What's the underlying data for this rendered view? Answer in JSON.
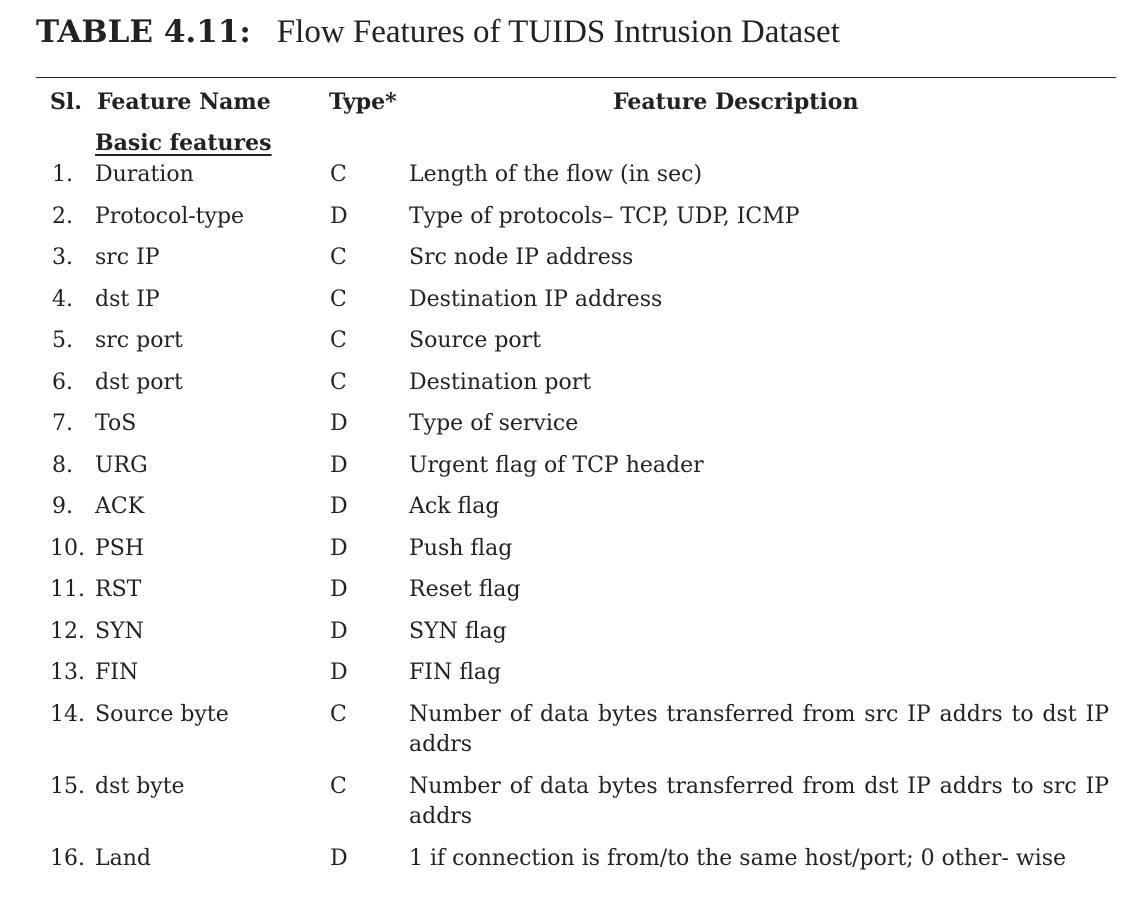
{
  "caption": {
    "label": "TABLE 4.11:",
    "title": "Flow Features of TUIDS Intrusion Dataset"
  },
  "headers": {
    "sl": "Sl.",
    "feature_name": "Feature Name",
    "type": "Type*",
    "description": "Feature Description"
  },
  "section": "Basic features",
  "rows": [
    {
      "no": "1.",
      "name": "Duration",
      "type": "C",
      "desc": "Length of the flow (in sec)"
    },
    {
      "no": "2.",
      "name": "Protocol-type",
      "type": "D",
      "desc": "Type of protocols– TCP, UDP, ICMP"
    },
    {
      "no": "3.",
      "name": "src IP",
      "type": "C",
      "desc": "Src node IP address"
    },
    {
      "no": "4.",
      "name": "dst IP",
      "type": "C",
      "desc": "Destination IP address"
    },
    {
      "no": "5.",
      "name": "src port",
      "type": "C",
      "desc": "Source port"
    },
    {
      "no": "6.",
      "name": "dst port",
      "type": "C",
      "desc": "Destination port"
    },
    {
      "no": "7.",
      "name": "ToS",
      "type": "D",
      "desc": "Type of service"
    },
    {
      "no": "8.",
      "name": "URG",
      "type": "D",
      "desc": "Urgent flag of TCP header"
    },
    {
      "no": "9.",
      "name": "ACK",
      "type": "D",
      "desc": "Ack flag"
    },
    {
      "no": "10.",
      "name": "PSH",
      "type": "D",
      "desc": "Push flag"
    },
    {
      "no": "11.",
      "name": "RST",
      "type": "D",
      "desc": "Reset flag"
    },
    {
      "no": "12.",
      "name": "SYN",
      "type": "D",
      "desc": "SYN flag"
    },
    {
      "no": "13.",
      "name": "FIN",
      "type": "D",
      "desc": "FIN flag"
    },
    {
      "no": "14.",
      "name": "Source byte",
      "type": "C",
      "desc": "Number of data bytes transferred from src IP addrs to dst IP addrs"
    },
    {
      "no": "15.",
      "name": "dst byte",
      "type": "C",
      "desc": "Number of data bytes transferred from dst IP addrs to src IP addrs"
    },
    {
      "no": "16.",
      "name": "Land",
      "type": "D",
      "desc": "1 if connection is from/to the same host/port; 0 other- wise"
    }
  ]
}
